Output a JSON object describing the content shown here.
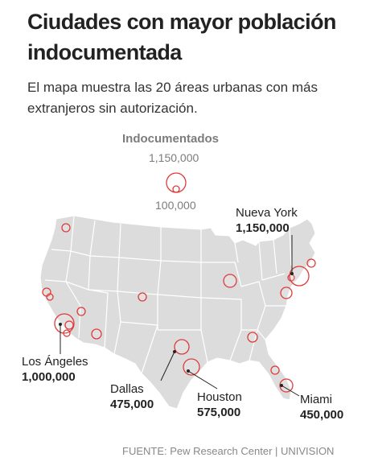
{
  "header": {
    "title": "Ciudades con mayor población indocumentada",
    "subtitle": "El mapa muestra las 20 áreas urbanas con más extranjeros sin autorización."
  },
  "legend": {
    "title": "Indocumentados",
    "max_label": "1,150,000",
    "min_label": "100,000",
    "max_value": 1150000,
    "min_value": 100000
  },
  "labeled_cities": {
    "new_york": {
      "name": "Nueva York",
      "value": "1,150,000"
    },
    "los_angeles": {
      "name": "Los Ángeles",
      "value": "1,000,000"
    },
    "dallas": {
      "name": "Dallas",
      "value": "475,000"
    },
    "houston": {
      "name": "Houston",
      "value": "575,000"
    },
    "miami": {
      "name": "Miami",
      "value": "450,000"
    }
  },
  "source": "FUENTE: Pew Research Center | UNIVISION",
  "colors": {
    "land": "#dcdcdc",
    "state_border": "#ffffff",
    "bubble": "#e03a3a",
    "title": "#222222",
    "muted": "#888888"
  }
}
